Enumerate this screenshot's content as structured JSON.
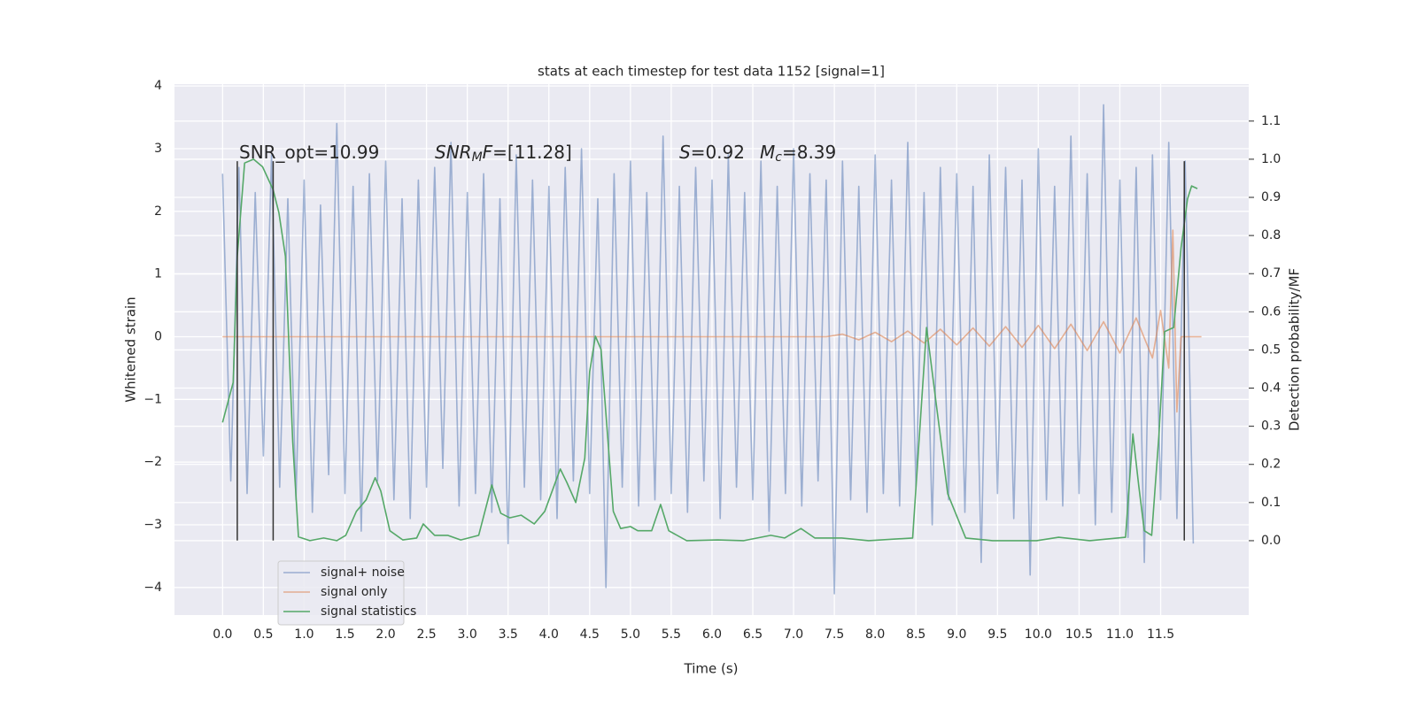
{
  "chart_data": {
    "type": "line",
    "title": "stats at each timestep for test data 1152 [signal=1]",
    "xlabel": "Time (s)",
    "ylabel": "Whitened strain",
    "y2label": "Detection probability/MF",
    "xlim": [
      -0.59,
      12.58
    ],
    "ylim": [
      -4.44,
      4.03
    ],
    "y2lim": [
      -0.195,
      1.197
    ],
    "xticks": [
      {
        "value": 0,
        "label": "0.0"
      },
      0.5,
      {
        "value": 1,
        "label": "1.0"
      },
      1.5,
      {
        "value": 2,
        "label": "2.0"
      },
      2.5,
      {
        "value": 3,
        "label": "3.0"
      },
      3.5,
      {
        "value": 4,
        "label": "4.0"
      },
      4.5,
      {
        "value": 5,
        "label": "5.0"
      },
      5.5,
      {
        "value": 6,
        "label": "6.0"
      },
      6.5,
      {
        "value": 7,
        "label": "7.0"
      },
      7.5,
      {
        "value": 8,
        "label": "8.0"
      },
      8.5,
      {
        "value": 9,
        "label": "9.0"
      },
      9.5,
      {
        "value": 10,
        "label": "10.0"
      },
      10.5,
      {
        "value": 11,
        "label": "11.0"
      },
      11.5
    ],
    "yticks": [
      {
        "value": -4,
        "label": "−4"
      },
      {
        "value": -3,
        "label": "−3"
      },
      {
        "value": -2,
        "label": "−2"
      },
      {
        "value": -1,
        "label": "−1"
      },
      0,
      1,
      2,
      3,
      4
    ],
    "y2ticks": [
      {
        "value": 0,
        "label": "0.0"
      },
      0.1,
      0.2,
      0.3,
      0.4,
      0.5,
      0.6,
      0.7,
      0.8,
      0.9,
      {
        "value": 1,
        "label": "1.0"
      },
      1.1
    ],
    "grid": true,
    "legend": "lower left",
    "annotations": [
      [
        {
          "text": "SNR_opt=10.99"
        }
      ],
      [
        {
          "text": "SNR",
          "italic": true
        },
        {
          "text": "M",
          "italic": true,
          "sub": true
        },
        {
          "text": "F",
          "italic": true
        },
        {
          "text": "=[11.28]"
        }
      ],
      [
        {
          "text": "S",
          "italic": true
        },
        {
          "text": "=0.92"
        }
      ],
      [
        {
          "text": "M",
          "italic": true
        },
        {
          "text": "c",
          "italic": true,
          "sub": true
        },
        {
          "text": "=8.39"
        }
      ]
    ],
    "vlines": {
      "x": [
        0.18,
        0.62,
        11.79
      ],
      "ymin": -3.25,
      "ymax": 2.8,
      "color": "#333333"
    },
    "series": [
      {
        "name": "signal+ noise",
        "color": "#4c72b0",
        "opacity": 0.5,
        "x": [
          0,
          0.1,
          0.2,
          0.3,
          0.4,
          0.5,
          0.6,
          0.7,
          0.8,
          0.9,
          1,
          1.1,
          1.2,
          1.3,
          1.4,
          1.5,
          1.6,
          1.7,
          1.8,
          1.9,
          2,
          2.1,
          2.2,
          2.3,
          2.4,
          2.5,
          2.6,
          2.7,
          2.8,
          2.9,
          3,
          3.1,
          3.2,
          3.3,
          3.4,
          3.5,
          3.6,
          3.7,
          3.8,
          3.9,
          4,
          4.1,
          4.2,
          4.3,
          4.4,
          4.5,
          4.6,
          4.7,
          4.8,
          4.9,
          5,
          5.1,
          5.2,
          5.3,
          5.4,
          5.5,
          5.6,
          5.7,
          5.8,
          5.9,
          6,
          6.1,
          6.2,
          6.3,
          6.4,
          6.5,
          6.6,
          6.7,
          6.8,
          6.9,
          7,
          7.1,
          7.2,
          7.3,
          7.4,
          7.5,
          7.6,
          7.7,
          7.8,
          7.9,
          8,
          8.1,
          8.2,
          8.3,
          8.4,
          8.5,
          8.6,
          8.7,
          8.8,
          8.9,
          9,
          9.1,
          9.2,
          9.3,
          9.4,
          9.5,
          9.6,
          9.7,
          9.8,
          9.9,
          10,
          10.1,
          10.2,
          10.3,
          10.4,
          10.5,
          10.6,
          10.7,
          10.8,
          10.9,
          11,
          11.1,
          11.2,
          11.3,
          11.4,
          11.5,
          11.6,
          11.7,
          11.8,
          11.9
        ],
        "values": [
          2.6,
          -2.3,
          2.7,
          -2.5,
          2.3,
          -1.9,
          2.9,
          -2.4,
          2.2,
          -2.6,
          2.5,
          -2.8,
          2.1,
          -2.2,
          3.4,
          -2.5,
          2.4,
          -3.1,
          2.6,
          -2.3,
          2.8,
          -2.6,
          2.2,
          -2.9,
          2.5,
          -2.4,
          2.7,
          -2.1,
          3.1,
          -2.7,
          2.3,
          -2.5,
          2.6,
          -2.8,
          2.2,
          -3.3,
          2.9,
          -2.4,
          2.5,
          -2.6,
          2.4,
          -2.9,
          2.7,
          -2.3,
          3.0,
          -2.5,
          2.2,
          -4.0,
          2.6,
          -2.4,
          2.8,
          -2.7,
          2.3,
          -2.6,
          3.2,
          -2.5,
          2.4,
          -2.8,
          2.7,
          -2.3,
          2.5,
          -2.9,
          2.9,
          -2.4,
          2.3,
          -2.6,
          2.8,
          -3.1,
          2.4,
          -2.5,
          3.0,
          -2.7,
          2.6,
          -2.3,
          2.5,
          -4.1,
          2.8,
          -2.6,
          2.4,
          -2.8,
          2.9,
          -2.5,
          2.5,
          -2.7,
          3.1,
          -2.4,
          2.3,
          -3.0,
          2.7,
          -2.6,
          2.6,
          -2.8,
          2.4,
          -3.6,
          2.9,
          -2.5,
          2.7,
          -2.9,
          2.5,
          -3.8,
          3.0,
          -2.6,
          2.4,
          -2.7,
          3.2,
          -2.5,
          2.6,
          -3.0,
          3.7,
          -2.8,
          2.5,
          -3.2,
          2.7,
          -3.6,
          2.9,
          -2.6,
          3.1,
          -2.9,
          2.8,
          -3.3
        ]
      },
      {
        "name": "signal only",
        "color": "#dd8452",
        "opacity": 0.6,
        "x": [
          0,
          7.4,
          7.6,
          7.8,
          8.0,
          8.2,
          8.4,
          8.6,
          8.8,
          9.0,
          9.2,
          9.4,
          9.6,
          9.8,
          10.0,
          10.2,
          10.4,
          10.6,
          10.8,
          11.0,
          11.2,
          11.4,
          11.5,
          11.6,
          11.65,
          11.7,
          11.75,
          12.0
        ],
        "values": [
          0,
          0,
          0.04,
          -0.05,
          0.07,
          -0.08,
          0.09,
          -0.1,
          0.12,
          -0.13,
          0.14,
          -0.15,
          0.16,
          -0.17,
          0.18,
          -0.19,
          0.2,
          -0.22,
          0.24,
          -0.26,
          0.3,
          -0.34,
          0.42,
          -0.5,
          1.7,
          -1.2,
          0,
          0
        ]
      },
      {
        "name": "signal statistics",
        "color": "#55a868",
        "axis": "y2",
        "x": [
          0,
          0.13,
          0.18,
          0.27,
          0.38,
          0.49,
          0.62,
          0.69,
          0.77,
          0.86,
          0.93,
          1.07,
          1.24,
          1.4,
          1.51,
          1.64,
          1.76,
          1.87,
          1.94,
          2.05,
          2.21,
          2.38,
          2.46,
          2.6,
          2.76,
          2.92,
          3.14,
          3.3,
          3.41,
          3.52,
          3.66,
          3.82,
          3.95,
          4.14,
          4.22,
          4.33,
          4.44,
          4.5,
          4.57,
          4.64,
          4.79,
          4.88,
          5.0,
          5.09,
          5.26,
          5.37,
          5.47,
          5.69,
          6.07,
          6.39,
          6.72,
          6.89,
          7.09,
          7.26,
          7.59,
          7.92,
          8.46,
          8.63,
          8.74,
          8.89,
          9.11,
          9.44,
          9.98,
          10.25,
          10.63,
          11.07,
          11.16,
          11.23,
          11.3,
          11.39,
          11.48,
          11.55,
          11.66,
          11.75,
          11.83,
          11.88,
          11.95
        ],
        "values": [
          0.31,
          0.415,
          0.745,
          0.99,
          1.0,
          0.98,
          0.92,
          0.86,
          0.745,
          0.26,
          0.01,
          0,
          0.007,
          0,
          0.014,
          0.077,
          0.107,
          0.165,
          0.13,
          0.026,
          0.002,
          0.007,
          0.044,
          0.014,
          0.014,
          0.002,
          0.014,
          0.146,
          0.072,
          0.06,
          0.067,
          0.044,
          0.077,
          0.188,
          0.153,
          0.1,
          0.216,
          0.443,
          0.536,
          0.501,
          0.077,
          0.032,
          0.037,
          0.026,
          0.026,
          0.095,
          0.026,
          0,
          0.002,
          0,
          0.014,
          0.007,
          0.032,
          0.007,
          0.007,
          0,
          0.007,
          0.559,
          0.374,
          0.123,
          0.007,
          0,
          0,
          0.009,
          0,
          0.009,
          0.28,
          0.146,
          0.026,
          0.014,
          0.28,
          0.548,
          0.559,
          0.768,
          0.896,
          0.93,
          0.923
        ]
      }
    ]
  }
}
